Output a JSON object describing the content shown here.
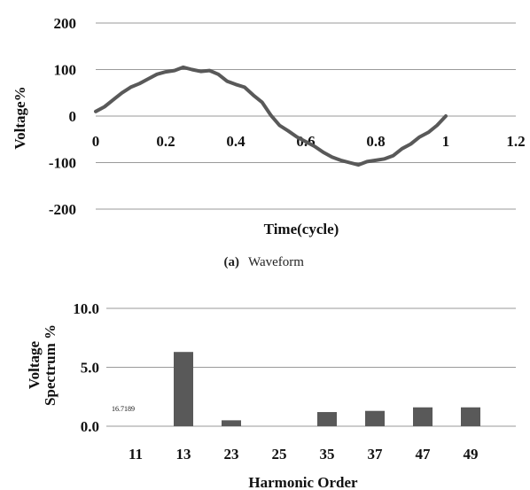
{
  "chart_data": [
    {
      "type": "line",
      "xlabel": "Time(cycle)",
      "ylabel": "Voltage%",
      "xlim": [
        0,
        1.2
      ],
      "ylim": [
        -200,
        200
      ],
      "x_ticks": [
        "0",
        "0.2",
        "0.4",
        "0.6",
        "0.8",
        "1",
        "1.2"
      ],
      "y_ticks": [
        "200",
        "100",
        "0",
        "-100",
        "-200"
      ],
      "grid": "horizontal",
      "line_color": "#595959",
      "series": [
        {
          "x": [
            0,
            0.025,
            0.05,
            0.075,
            0.1,
            0.125,
            0.15,
            0.175,
            0.2,
            0.225,
            0.25,
            0.275,
            0.3,
            0.325,
            0.35,
            0.375,
            0.4,
            0.425,
            0.45,
            0.475,
            0.5,
            0.525,
            0.55,
            0.575,
            0.6,
            0.625,
            0.65,
            0.675,
            0.7,
            0.725,
            0.75,
            0.775,
            0.8,
            0.825,
            0.85,
            0.875,
            0.9,
            0.925,
            0.95,
            0.975,
            1.0
          ],
          "values": [
            10,
            20,
            35,
            50,
            62,
            70,
            80,
            90,
            95,
            98,
            105,
            100,
            96,
            98,
            90,
            75,
            68,
            62,
            45,
            30,
            2,
            -20,
            -32,
            -45,
            -55,
            -65,
            -78,
            -88,
            -95,
            -100,
            -105,
            -98,
            -95,
            -92,
            -85,
            -70,
            -60,
            -45,
            -35,
            -20,
            0
          ]
        }
      ],
      "caption_label": "(a)",
      "caption_text": "Waveform"
    },
    {
      "type": "bar",
      "xlabel": "Harmonic Order",
      "ylabel": "Voltage Spectrum %",
      "ylabel_lines": [
        "Voltage",
        "Spectrum %"
      ],
      "ylim": [
        0,
        10
      ],
      "y_ticks": [
        "10.0",
        "5.0",
        "0.0"
      ],
      "grid": "horizontal",
      "bar_color": "#595959",
      "categories": [
        "11",
        "13",
        "23",
        "25",
        "35",
        "37",
        "47",
        "49"
      ],
      "values": [
        0,
        6.3,
        0.5,
        0,
        1.2,
        1.3,
        1.6,
        1.6
      ],
      "annotation": "16.7189"
    }
  ]
}
